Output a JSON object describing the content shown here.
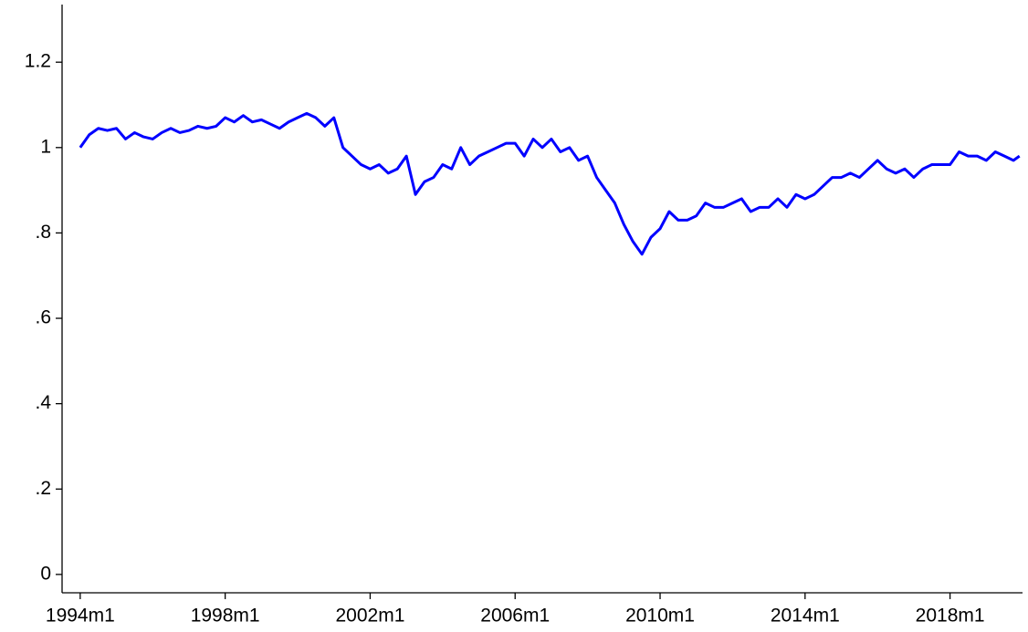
{
  "chart_data": {
    "type": "line",
    "x": [
      "1994m1",
      "1994m4",
      "1994m7",
      "1994m10",
      "1995m1",
      "1995m4",
      "1995m7",
      "1995m10",
      "1996m1",
      "1996m4",
      "1996m7",
      "1996m10",
      "1997m1",
      "1997m4",
      "1997m7",
      "1997m10",
      "1998m1",
      "1998m4",
      "1998m7",
      "1998m10",
      "1999m1",
      "1999m4",
      "1999m7",
      "1999m10",
      "2000m1",
      "2000m4",
      "2000m7",
      "2000m10",
      "2001m1",
      "2001m4",
      "2001m7",
      "2001m10",
      "2002m1",
      "2002m4",
      "2002m7",
      "2002m10",
      "2003m1",
      "2003m4",
      "2003m7",
      "2003m10",
      "2004m1",
      "2004m4",
      "2004m7",
      "2004m10",
      "2005m1",
      "2005m4",
      "2005m7",
      "2005m10",
      "2006m1",
      "2006m4",
      "2006m7",
      "2006m10",
      "2007m1",
      "2007m4",
      "2007m7",
      "2007m10",
      "2008m1",
      "2008m4",
      "2008m7",
      "2008m10",
      "2009m1",
      "2009m4",
      "2009m7",
      "2009m10",
      "2010m1",
      "2010m4",
      "2010m7",
      "2010m10",
      "2011m1",
      "2011m4",
      "2011m7",
      "2011m10",
      "2012m1",
      "2012m4",
      "2012m7",
      "2012m10",
      "2013m1",
      "2013m4",
      "2013m7",
      "2013m10",
      "2014m1",
      "2014m4",
      "2014m7",
      "2014m10",
      "2015m1",
      "2015m4",
      "2015m7",
      "2015m10",
      "2016m1",
      "2016m4",
      "2016m7",
      "2016m10",
      "2017m1",
      "2017m4",
      "2017m7",
      "2017m10",
      "2018m1",
      "2018m4",
      "2018m7",
      "2018m10",
      "2019m1",
      "2019m4",
      "2019m7",
      "2019m10",
      "2019m12"
    ],
    "series": [
      {
        "color": "#0000ff",
        "values": [
          1.0,
          1.03,
          1.045,
          1.04,
          1.045,
          1.02,
          1.035,
          1.025,
          1.02,
          1.035,
          1.045,
          1.035,
          1.04,
          1.05,
          1.045,
          1.05,
          1.07,
          1.06,
          1.075,
          1.06,
          1.065,
          1.055,
          1.045,
          1.06,
          1.07,
          1.08,
          1.07,
          1.05,
          1.07,
          1.0,
          0.98,
          0.96,
          0.95,
          0.96,
          0.94,
          0.95,
          0.98,
          0.89,
          0.92,
          0.93,
          0.96,
          0.95,
          1.0,
          0.96,
          0.98,
          0.99,
          1.0,
          1.01,
          1.01,
          0.98,
          1.02,
          1.0,
          1.02,
          0.99,
          1.0,
          0.97,
          0.98,
          0.93,
          0.9,
          0.87,
          0.82,
          0.78,
          0.75,
          0.79,
          0.81,
          0.85,
          0.83,
          0.83,
          0.84,
          0.87,
          0.86,
          0.86,
          0.87,
          0.88,
          0.85,
          0.86,
          0.86,
          0.88,
          0.86,
          0.89,
          0.88,
          0.89,
          0.91,
          0.93,
          0.93,
          0.94,
          0.93,
          0.95,
          0.97,
          0.95,
          0.94,
          0.95,
          0.93,
          0.95,
          0.96,
          0.96,
          0.96,
          0.99,
          0.98,
          0.98,
          0.97,
          0.99,
          0.98,
          0.97,
          0.98
        ]
      }
    ],
    "xlim": [
      "1993m7",
      "2020m1"
    ],
    "xticks": [
      "1994m1",
      "1998m1",
      "2002m1",
      "2006m1",
      "2010m1",
      "2014m1",
      "2018m1"
    ],
    "ylim": [
      -0.043,
      1.335
    ],
    "yticks": [
      0,
      {
        "value": 0.2,
        "label": ".2"
      },
      {
        "value": 0.4,
        "label": ".4"
      },
      {
        "value": 0.6,
        "label": ".6"
      },
      {
        "value": 0.8,
        "label": ".8"
      },
      1,
      1.2
    ]
  }
}
